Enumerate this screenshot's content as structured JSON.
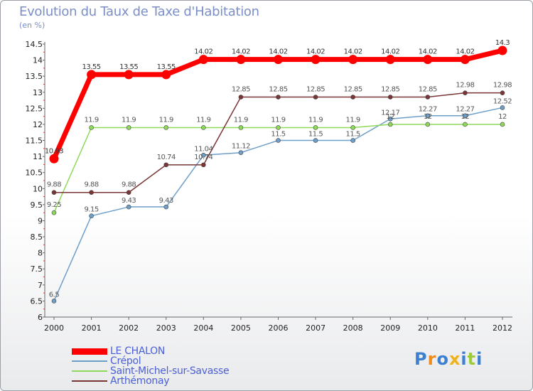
{
  "chart_data": {
    "type": "line",
    "title": "Evolution du Taux de Taxe d'Habitation",
    "ylabel": "(en %)",
    "xlabel": "",
    "ylim": [
      6,
      14.5
    ],
    "yticks": [
      "6",
      "6.5",
      "7",
      "7.5",
      "8",
      "8.5",
      "9",
      "9.5",
      "10",
      "10.5",
      "11",
      "11.5",
      "12",
      "12.5",
      "13",
      "13.5",
      "14",
      "14.5"
    ],
    "categories": [
      "2000",
      "2001",
      "2002",
      "2003",
      "2004",
      "2005",
      "2006",
      "2007",
      "2008",
      "2009",
      "2010",
      "2011",
      "2012"
    ],
    "legend_position": "bottom-left",
    "series": [
      {
        "name": "LE CHALON",
        "color": "#ff0000",
        "values": [
          10.93,
          13.55,
          13.55,
          13.55,
          14.02,
          14.02,
          14.02,
          14.02,
          14.02,
          14.02,
          14.02,
          14.02,
          14.3
        ],
        "labels": [
          "10.93",
          "13.55",
          "13.55",
          "13.55",
          "14.02",
          "14.02",
          "14.02",
          "14.02",
          "14.02",
          "14.02",
          "14.02",
          "14.02",
          "14.3"
        ]
      },
      {
        "name": "Crépol",
        "color": "#6e9fc9",
        "values": [
          6.5,
          9.15,
          9.43,
          9.43,
          11.04,
          11.12,
          11.5,
          11.5,
          11.5,
          12.17,
          12.27,
          12.27,
          12.52
        ],
        "labels": [
          "6.5",
          "9.15",
          "9.43",
          "9.43",
          "11.04",
          "11.12",
          "11.5",
          "11.5",
          "11.5",
          "12.17",
          "12.27",
          "12.27",
          "12.52"
        ]
      },
      {
        "name": "Saint-Michel-sur-Savasse",
        "color": "#8fd95a",
        "values": [
          9.25,
          11.9,
          11.9,
          11.9,
          11.9,
          11.9,
          11.9,
          11.9,
          11.9,
          12,
          12,
          12,
          12
        ],
        "labels": [
          "9.25",
          "11.9",
          "11.9",
          "11.9",
          "11.9",
          "11.9",
          "11.9",
          "11.9",
          "11.9",
          "12",
          "12",
          "12",
          "12"
        ]
      },
      {
        "name": "Arthémonay",
        "color": "#7a3535",
        "values": [
          9.88,
          9.88,
          9.88,
          10.74,
          10.74,
          12.85,
          12.85,
          12.85,
          12.85,
          12.85,
          12.85,
          12.98,
          12.98
        ],
        "labels": [
          "9.88",
          "9.88",
          "9.88",
          "10.74",
          "10.74",
          "12.85",
          "12.85",
          "12.85",
          "12.85",
          "12.85",
          "12.85",
          "12.98",
          "12.98"
        ]
      }
    ]
  },
  "logo": {
    "text": "Proxiti",
    "letters": [
      "P",
      "r",
      "o",
      "x",
      "i",
      "t",
      "i"
    ],
    "colors": [
      "#3d7fd1",
      "#f08a1c",
      "#3d7fd1",
      "#f0b21c",
      "#3d7fd1",
      "#9ccc3a",
      "#3d7fd1"
    ]
  }
}
